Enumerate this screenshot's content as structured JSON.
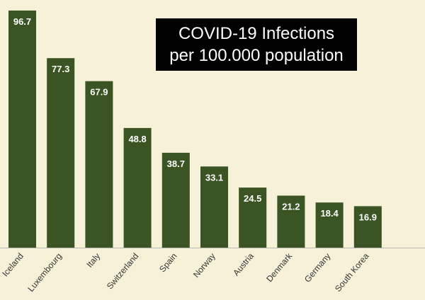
{
  "chart_data": {
    "type": "bar",
    "title_lines": [
      "COVID-19 Infections",
      "per 100.000 population"
    ],
    "categories": [
      "Iceland",
      "Luxembourg",
      "Italy",
      "Switzerland",
      "Spain",
      "Norway",
      "Austria",
      "Denmark",
      "Germany",
      "South Korea"
    ],
    "values": [
      96.7,
      77.3,
      67.9,
      48.8,
      38.7,
      33.1,
      24.5,
      21.2,
      18.4,
      16.9
    ],
    "data_labels": [
      "96.7",
      "77.3",
      "67.9",
      "48.8",
      "38.7",
      "33.1",
      "24.5",
      "21.2",
      "18.4",
      "16.9"
    ],
    "ylim": [
      0,
      100
    ],
    "grid": false,
    "legend": "none",
    "colors": {
      "bar": "#3a5424",
      "label": "#ffffff",
      "background": "#f6f1d8",
      "axis": "#b7b7b7"
    }
  }
}
